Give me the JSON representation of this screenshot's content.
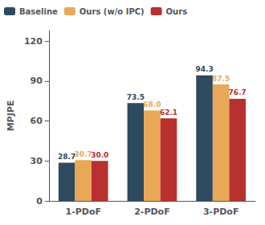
{
  "chart_data": {
    "type": "bar",
    "categories": [
      "1-PDoF",
      "2-PDoF",
      "3-PDoF"
    ],
    "series": [
      {
        "name": "Baseline",
        "color": "#2d4a5e",
        "values": [
          28.7,
          73.5,
          94.3
        ]
      },
      {
        "name": "Ours (w/o IPC)",
        "color": "#e8a857",
        "values": [
          30.7,
          68.0,
          87.5
        ],
        "value_labels": [
          "30.7",
          "68.0",
          "87.5"
        ]
      },
      {
        "name": "Ours",
        "color": "#b83030",
        "values": [
          30.0,
          62.1,
          76.7
        ],
        "value_labels": [
          "30.0",
          "62.1",
          "76.7"
        ]
      }
    ],
    "ylabel": "MPJPE",
    "ylim": [
      0,
      128
    ],
    "yticks": [
      0,
      30,
      60,
      90,
      120
    ],
    "grid": false,
    "legend": "upper left",
    "data_labels": true
  }
}
